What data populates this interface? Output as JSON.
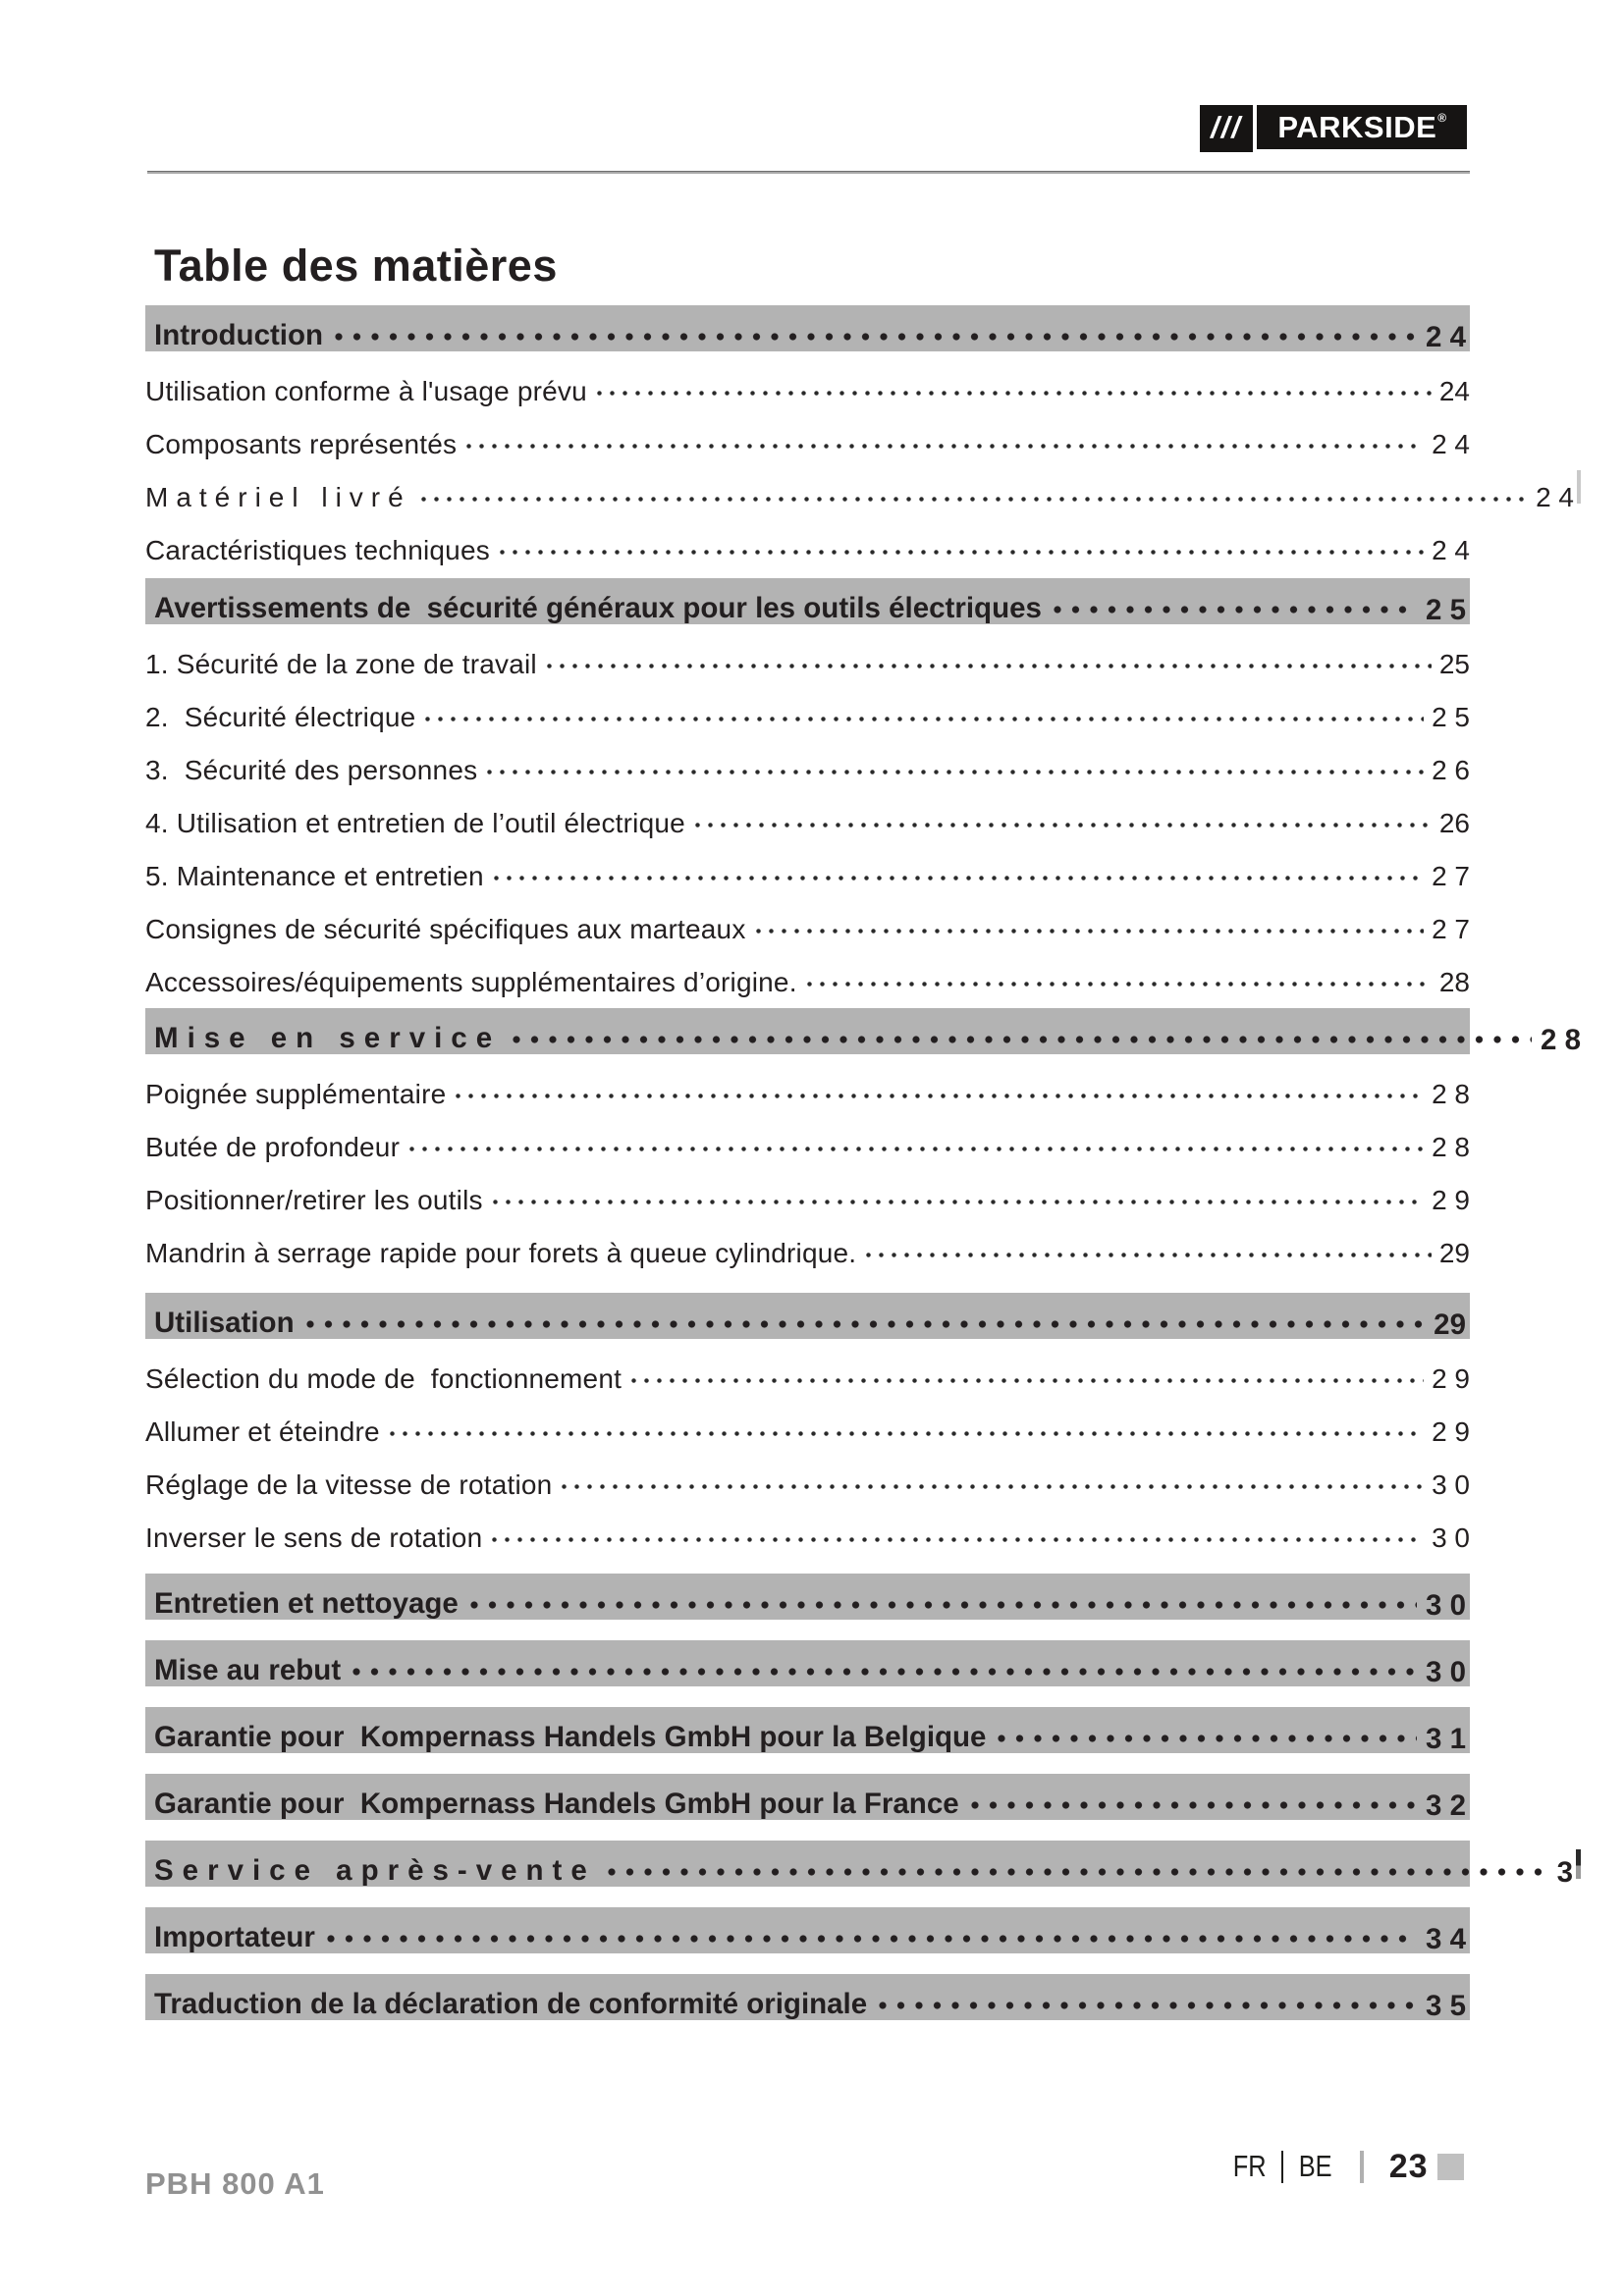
{
  "logo": {
    "slashes": "///",
    "brand": "PARKSIDE",
    "registered": "®"
  },
  "page_title": "Table des matières",
  "toc": {
    "rows": [
      {
        "type": "section",
        "label": "Introduction",
        "page": "2 4"
      },
      {
        "type": "entry",
        "label": "Utilisation conforme à l'usage prévu",
        "page": "24"
      },
      {
        "type": "entry",
        "label": "Composants représentés",
        "page": "2 4"
      },
      {
        "type": "entry",
        "label": "Matériel livré",
        "page": "2 4",
        "spaced": true,
        "overflow": true,
        "sliver": "light"
      },
      {
        "type": "entry",
        "label": "Caractéristiques techniques",
        "page": "2 4"
      },
      {
        "type": "section",
        "label": "Avertissements de  sécurité généraux pour les outils électriques",
        "page": "2 5"
      },
      {
        "type": "entry",
        "label": "1. Sécurité de la zone de travail",
        "page": "25"
      },
      {
        "type": "entry",
        "label": "2.  Sécurité électrique",
        "page": "2 5"
      },
      {
        "type": "entry",
        "label": "3.  Sécurité des personnes",
        "page": "2 6"
      },
      {
        "type": "entry",
        "label": "4. Utilisation et entretien de l’outil électrique",
        "page": "26"
      },
      {
        "type": "entry",
        "label": "5. Maintenance et entretien",
        "page": "2 7"
      },
      {
        "type": "entry",
        "label": "Consignes de sécurité spécifiques aux marteaux",
        "page": "2 7"
      },
      {
        "type": "entry",
        "label": "Accessoires/équipements supplémentaires d’origine.",
        "page": "28"
      },
      {
        "type": "section",
        "label": "Mise en service",
        "page": "2 8",
        "spaced": true,
        "overflow": true
      },
      {
        "type": "entry",
        "label": "Poignée supplémentaire",
        "page": "2 8"
      },
      {
        "type": "entry",
        "label": "Butée de profondeur",
        "page": "2 8"
      },
      {
        "type": "entry",
        "label": "Positionner/retirer les outils",
        "page": "2 9"
      },
      {
        "type": "entry",
        "label": "Mandrin à serrage rapide pour forets à queue cylindrique.",
        "page": "29"
      },
      {
        "type": "section",
        "label": "Utilisation",
        "page": "29"
      },
      {
        "type": "entry",
        "label": "Sélection du mode de  fonctionnement",
        "page": "2 9"
      },
      {
        "type": "entry",
        "label": "Allumer et éteindre",
        "page": "2 9"
      },
      {
        "type": "entry",
        "label": "Réglage de la vitesse de rotation",
        "page": "3 0"
      },
      {
        "type": "entry",
        "label": "Inverser le sens de rotation",
        "page": "3 0"
      },
      {
        "type": "section",
        "label": "Entretien et nettoyage",
        "page": "3 0"
      },
      {
        "type": "section",
        "label": "Mise au rebut",
        "page": "3 0"
      },
      {
        "type": "section",
        "label": "Garantie pour  Kompernass Handels GmbH pour la Belgique",
        "page": "3 1"
      },
      {
        "type": "section",
        "label": "Garantie pour  Kompernass Handels GmbH pour la France",
        "page": "3 2"
      },
      {
        "type": "section",
        "label": "Service après-vente",
        "page": "3",
        "spaced": true,
        "overflow": true,
        "sliver": "dark"
      },
      {
        "type": "section",
        "label": "Importateur",
        "page": "3 4"
      },
      {
        "type": "section",
        "label": "Traduction de la déclaration de conformité originale",
        "page": "3 5"
      }
    ]
  },
  "footer": {
    "model": "PBH 800 A1",
    "lang1": "FR",
    "lang2": "BE",
    "page_number": "23"
  },
  "colors": {
    "bar_gray": "#b3b3b3",
    "logo_black": "#161413",
    "footer_model_gray": "#919191",
    "divider_gray": "#b0b0b0",
    "square_gray": "#c0c0c0"
  }
}
